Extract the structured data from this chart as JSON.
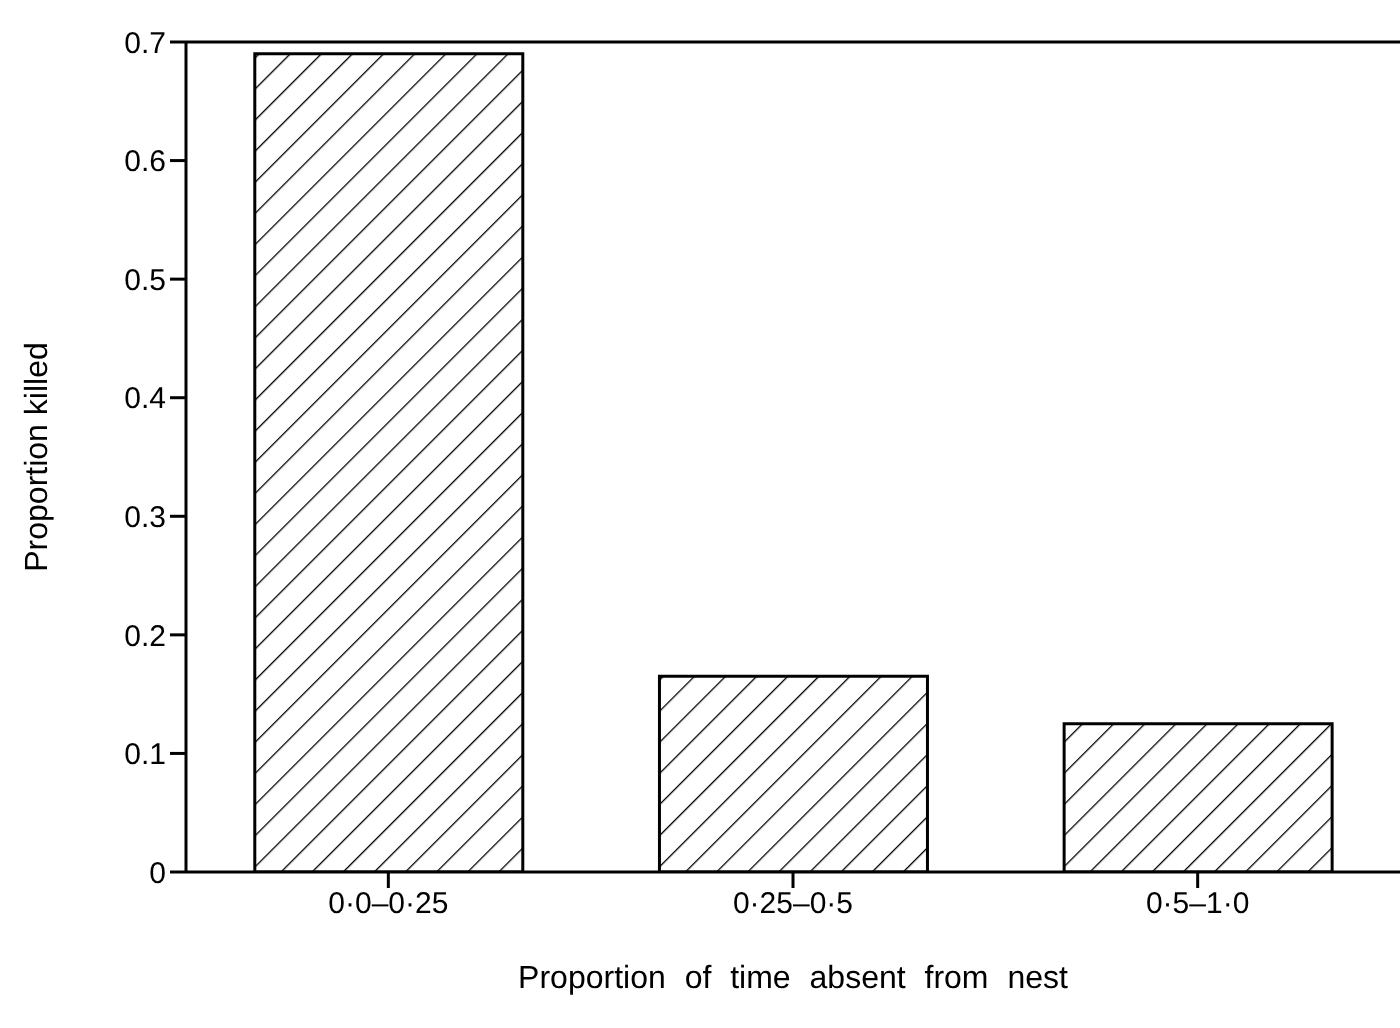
{
  "chart_data": {
    "type": "bar",
    "xlabel": "Proportion of time absent from nest",
    "ylabel": "Proportion killed",
    "categories": [
      "0·0–0·25",
      "0·25–0·5",
      "0·5–1·0"
    ],
    "values": [
      0.69,
      0.165,
      0.125
    ],
    "color": "#000000",
    "ylim": [
      0,
      0.7
    ],
    "yticks": [
      0,
      0.1,
      0.2,
      0.3,
      0.4,
      0.5,
      0.6,
      0.7
    ],
    "grid": false,
    "legend": false
  }
}
